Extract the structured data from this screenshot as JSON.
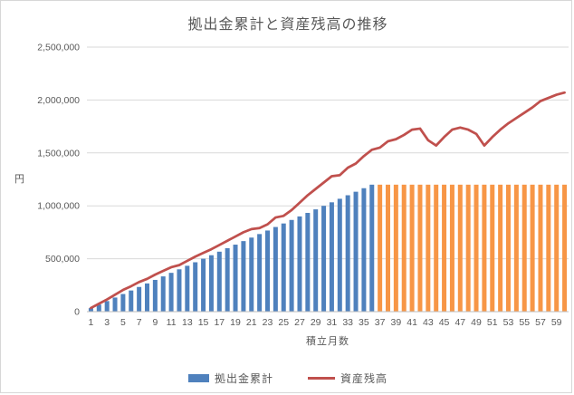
{
  "chart_data": {
    "type": "bar",
    "title": "拠出金累計と資産残高の推移",
    "xlabel": "積立月数",
    "ylabel": "円",
    "ylim": [
      0,
      2500000
    ],
    "y_tick_step": 500000,
    "y_tick_labels": [
      "0",
      "500,000",
      "1,000,000",
      "1,500,000",
      "2,000,000",
      "2,500,000"
    ],
    "x_tick_labels": [
      "1",
      "3",
      "5",
      "7",
      "9",
      "11",
      "13",
      "15",
      "17",
      "19",
      "21",
      "23",
      "25",
      "27",
      "29",
      "31",
      "33",
      "35",
      "37",
      "39",
      "41",
      "43",
      "45",
      "47",
      "49",
      "51",
      "53",
      "55",
      "57",
      "59"
    ],
    "x": [
      1,
      2,
      3,
      4,
      5,
      6,
      7,
      8,
      9,
      10,
      11,
      12,
      13,
      14,
      15,
      16,
      17,
      18,
      19,
      20,
      21,
      22,
      23,
      24,
      25,
      26,
      27,
      28,
      29,
      30,
      31,
      32,
      33,
      34,
      35,
      36,
      37,
      38,
      39,
      40,
      41,
      42,
      43,
      44,
      45,
      46,
      47,
      48,
      49,
      50,
      51,
      52,
      53,
      54,
      55,
      56,
      57,
      58,
      59,
      60
    ],
    "grid": true,
    "grid_color": "#d9d9d9",
    "axis_color": "#bfbfbf",
    "text_color": "#595959",
    "legend_position": "bottom",
    "series": [
      {
        "name": "拠出金累計",
        "type": "bar",
        "colors": {
          "contributing": "#4F81BD",
          "stopped": "#F79646"
        },
        "color_change_at_month": 37,
        "values": [
          33333,
          66667,
          100000,
          133333,
          166667,
          200000,
          233333,
          266667,
          300000,
          333333,
          366667,
          400000,
          433333,
          466667,
          500000,
          533333,
          566667,
          600000,
          633333,
          666667,
          700000,
          733333,
          766667,
          800000,
          833333,
          866667,
          900000,
          933333,
          966667,
          1000000,
          1033333,
          1066667,
          1100000,
          1133333,
          1166667,
          1200000,
          1200000,
          1200000,
          1200000,
          1200000,
          1200000,
          1200000,
          1200000,
          1200000,
          1200000,
          1200000,
          1200000,
          1200000,
          1200000,
          1200000,
          1200000,
          1200000,
          1200000,
          1200000,
          1200000,
          1200000,
          1200000,
          1200000,
          1200000,
          1200000
        ]
      },
      {
        "name": "資産残高",
        "type": "line",
        "color": "#C0504D",
        "values": [
          35000,
          75000,
          115000,
          160000,
          205000,
          240000,
          280000,
          310000,
          350000,
          385000,
          420000,
          440000,
          480000,
          520000,
          555000,
          590000,
          630000,
          670000,
          710000,
          750000,
          780000,
          790000,
          825000,
          890000,
          905000,
          960000,
          1030000,
          1100000,
          1160000,
          1220000,
          1280000,
          1290000,
          1360000,
          1400000,
          1470000,
          1530000,
          1550000,
          1610000,
          1630000,
          1670000,
          1720000,
          1730000,
          1620000,
          1570000,
          1650000,
          1720000,
          1740000,
          1720000,
          1680000,
          1570000,
          1650000,
          1720000,
          1780000,
          1830000,
          1880000,
          1930000,
          1990000,
          2020000,
          2050000,
          2070000
        ]
      }
    ]
  }
}
